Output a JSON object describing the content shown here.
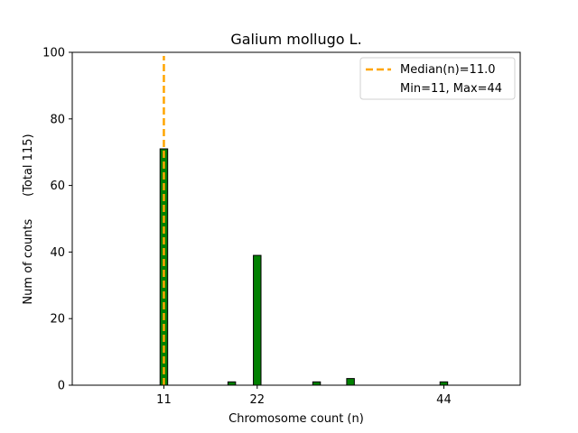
{
  "chart_data": {
    "type": "bar",
    "title": "Galium mollugo L.",
    "xlabel": "Chromosome count (n)",
    "ylabel": "Num of counts      (Total 115)",
    "xlim": [
      0.2,
      53
    ],
    "ylim": [
      0,
      100
    ],
    "xticks": [
      11,
      22,
      44
    ],
    "yticks": [
      0,
      20,
      40,
      60,
      80,
      100
    ],
    "bar_width": 0.9,
    "bar_color": "#008000",
    "bar_edge_color": "#000000",
    "bars": [
      {
        "x": 11,
        "value": 71
      },
      {
        "x": 19,
        "value": 1
      },
      {
        "x": 22,
        "value": 39
      },
      {
        "x": 29,
        "value": 1
      },
      {
        "x": 33,
        "value": 2
      },
      {
        "x": 44,
        "value": 1
      }
    ],
    "median": {
      "value": 11.0,
      "color": "#FFA500",
      "label": "Median(n)=11.0"
    },
    "legend": {
      "position": "top-right",
      "entries": [
        "Median(n)=11.0",
        "Min=11, Max=44"
      ]
    },
    "grid": false
  }
}
